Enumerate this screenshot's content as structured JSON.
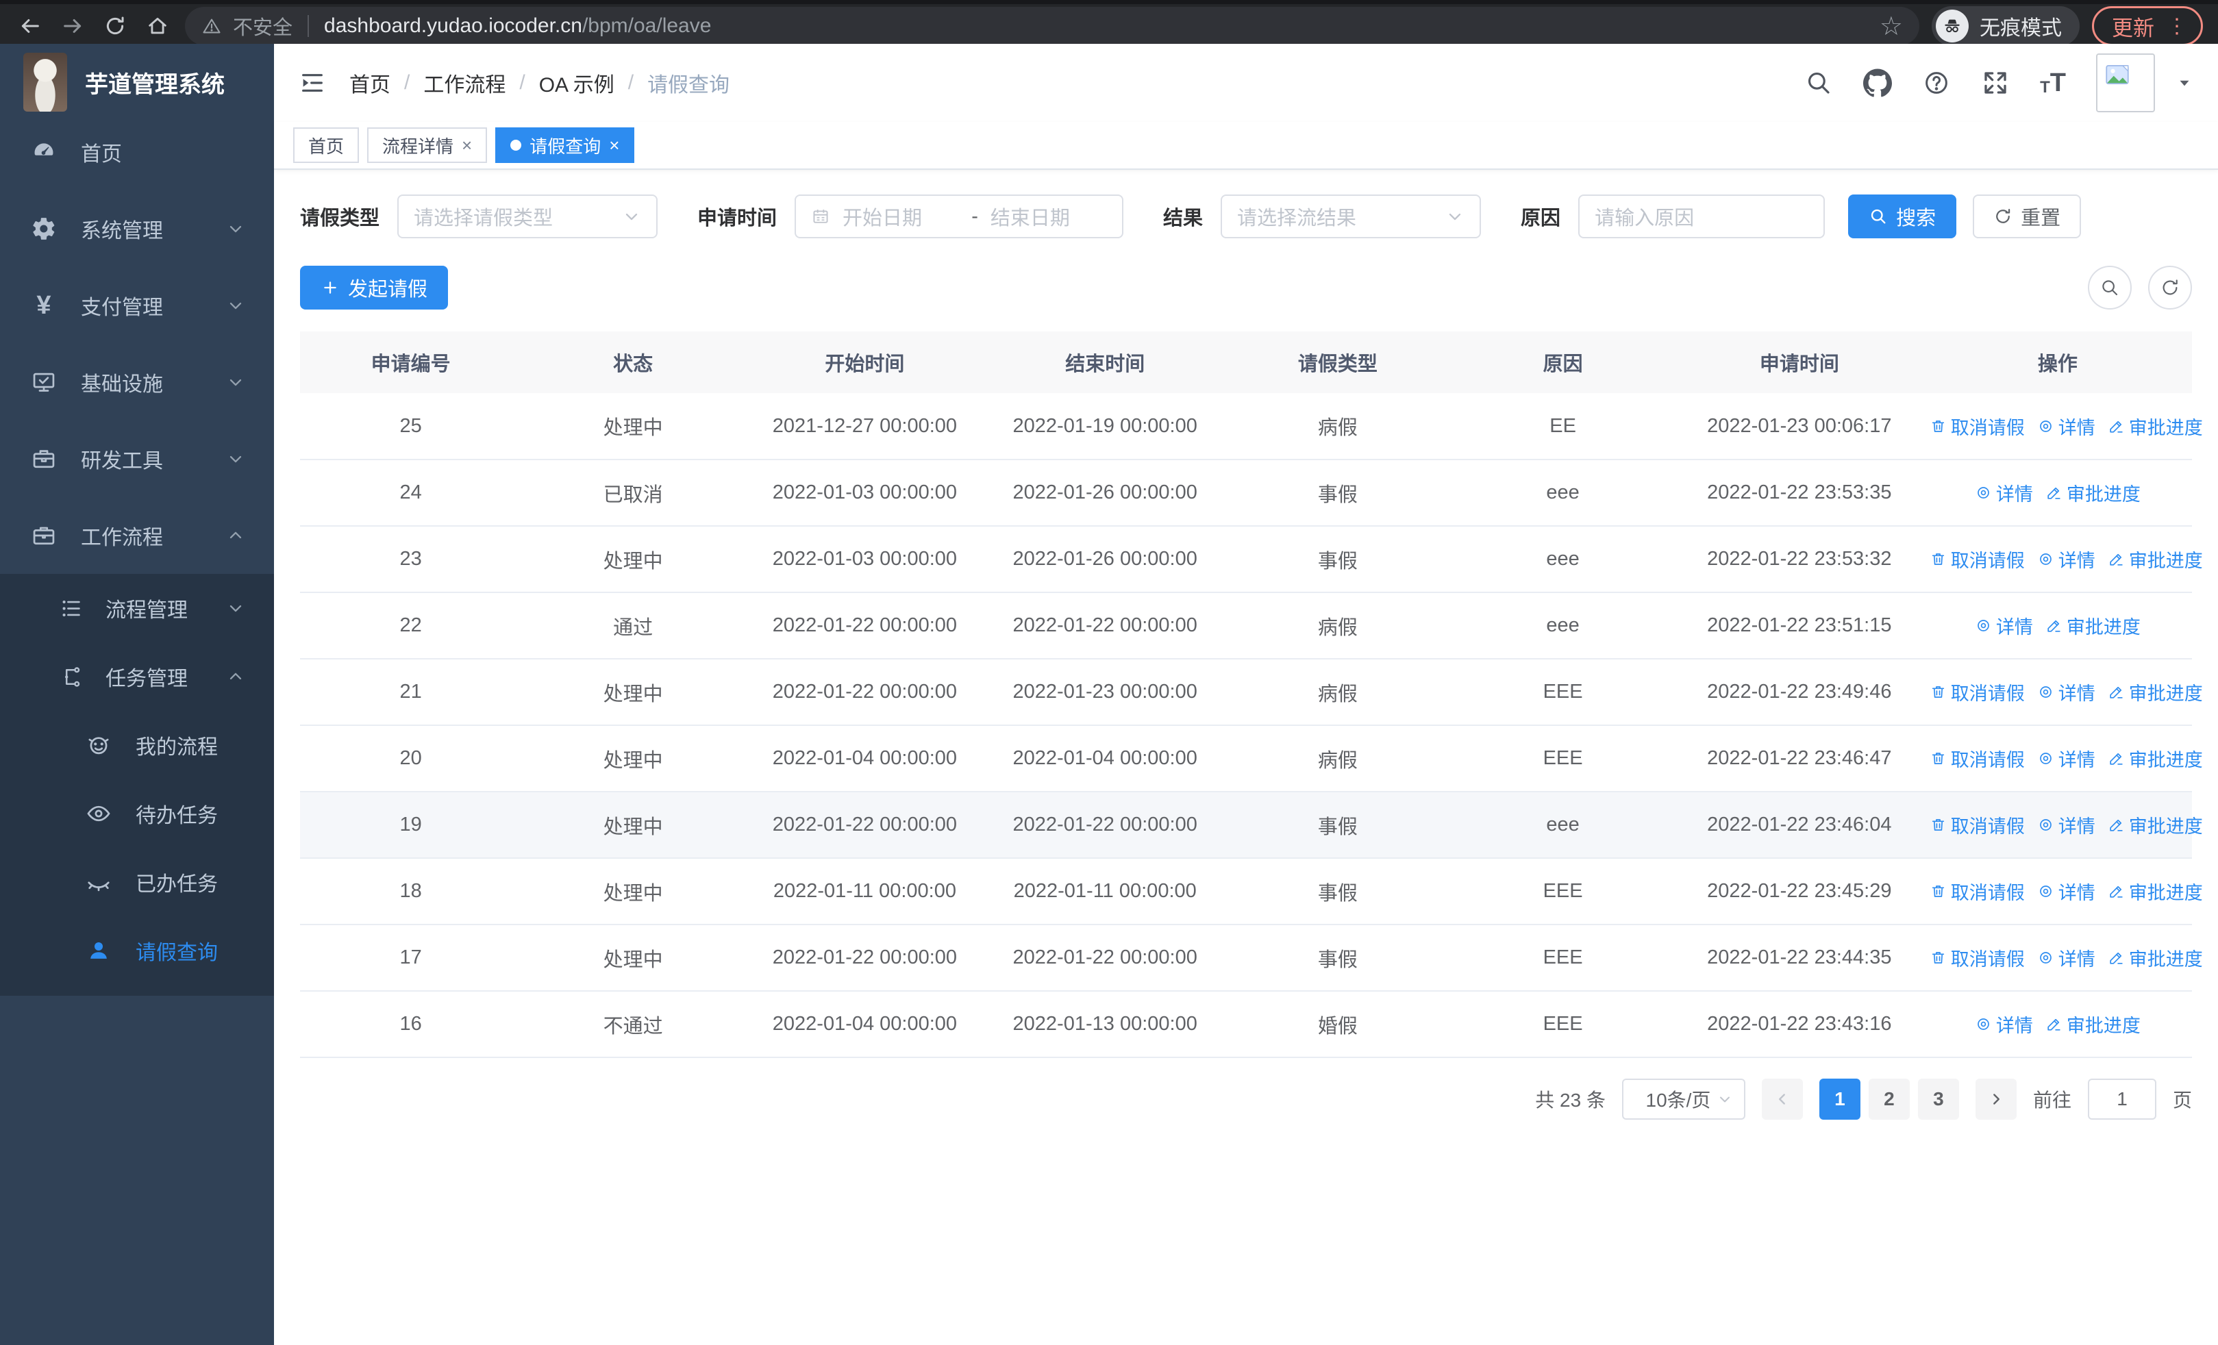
{
  "browser": {
    "security_label": "不安全",
    "url_host": "dashboard.yudao.iocoder.cn",
    "url_path": "/bpm/oa/leave",
    "incognito_label": "无痕模式",
    "update_label": "更新"
  },
  "sidebar": {
    "title": "芋道管理系统",
    "items": [
      {
        "key": "home",
        "label": "首页",
        "icon": "dashboard-icon",
        "level": 1
      },
      {
        "key": "system",
        "label": "系统管理",
        "icon": "gear-icon",
        "level": 1,
        "chevron": "down"
      },
      {
        "key": "payment",
        "label": "支付管理",
        "icon": "yen-icon",
        "level": 1,
        "chevron": "down"
      },
      {
        "key": "infra",
        "label": "基础设施",
        "icon": "monitor-icon",
        "level": 1,
        "chevron": "down"
      },
      {
        "key": "devtools",
        "label": "研发工具",
        "icon": "toolbox-icon",
        "level": 1,
        "chevron": "down"
      },
      {
        "key": "workflow",
        "label": "工作流程",
        "icon": "briefcase-icon",
        "level": 1,
        "chevron": "up"
      },
      {
        "key": "process-mgmt",
        "label": "流程管理",
        "icon": "list-icon",
        "level": 2,
        "chevron": "down"
      },
      {
        "key": "task-mgmt",
        "label": "任务管理",
        "icon": "flow-icon",
        "level": 2,
        "chevron": "up"
      },
      {
        "key": "my-process",
        "label": "我的流程",
        "icon": "face-icon",
        "level": 3
      },
      {
        "key": "todo-tasks",
        "label": "待办任务",
        "icon": "eye-open-icon",
        "level": 3
      },
      {
        "key": "done-tasks",
        "label": "已办任务",
        "icon": "eye-closed-icon",
        "level": 3
      },
      {
        "key": "leave-query",
        "label": "请假查询",
        "icon": "user-icon",
        "level": 3,
        "active": true
      }
    ]
  },
  "header": {
    "breadcrumb": [
      "首页",
      "工作流程",
      "OA 示例",
      "请假查询"
    ]
  },
  "tabs": [
    {
      "label": "首页",
      "closable": false,
      "active": false
    },
    {
      "label": "流程详情",
      "closable": true,
      "active": false
    },
    {
      "label": "请假查询",
      "closable": true,
      "active": true
    }
  ],
  "filters": {
    "leave_type_label": "请假类型",
    "leave_type_placeholder": "请选择请假类型",
    "apply_time_label": "申请时间",
    "date_start_placeholder": "开始日期",
    "date_separator": "-",
    "date_end_placeholder": "结束日期",
    "result_label": "结果",
    "result_placeholder": "请选择流结果",
    "reason_label": "原因",
    "reason_placeholder": "请输入原因",
    "search_label": "搜索",
    "reset_label": "重置"
  },
  "toolbar": {
    "create_label": "发起请假"
  },
  "table": {
    "columns": [
      "申请编号",
      "状态",
      "开始时间",
      "结束时间",
      "请假类型",
      "原因",
      "申请时间",
      "操作"
    ],
    "action_labels": {
      "cancel": "取消请假",
      "detail": "详情",
      "progress": "审批进度"
    },
    "rows": [
      {
        "id": "25",
        "status": "处理中",
        "start": "2021-12-27 00:00:00",
        "end": "2022-01-19 00:00:00",
        "type": "病假",
        "reason": "EE",
        "applied": "2022-01-23 00:06:17",
        "actions": [
          "cancel",
          "detail",
          "progress"
        ],
        "highlight": false
      },
      {
        "id": "24",
        "status": "已取消",
        "start": "2022-01-03 00:00:00",
        "end": "2022-01-26 00:00:00",
        "type": "事假",
        "reason": "eee",
        "applied": "2022-01-22 23:53:35",
        "actions": [
          "detail",
          "progress"
        ],
        "highlight": false
      },
      {
        "id": "23",
        "status": "处理中",
        "start": "2022-01-03 00:00:00",
        "end": "2022-01-26 00:00:00",
        "type": "事假",
        "reason": "eee",
        "applied": "2022-01-22 23:53:32",
        "actions": [
          "cancel",
          "detail",
          "progress"
        ],
        "highlight": false
      },
      {
        "id": "22",
        "status": "通过",
        "start": "2022-01-22 00:00:00",
        "end": "2022-01-22 00:00:00",
        "type": "病假",
        "reason": "eee",
        "applied": "2022-01-22 23:51:15",
        "actions": [
          "detail",
          "progress"
        ],
        "highlight": false
      },
      {
        "id": "21",
        "status": "处理中",
        "start": "2022-01-22 00:00:00",
        "end": "2022-01-23 00:00:00",
        "type": "病假",
        "reason": "EEE",
        "applied": "2022-01-22 23:49:46",
        "actions": [
          "cancel",
          "detail",
          "progress"
        ],
        "highlight": false
      },
      {
        "id": "20",
        "status": "处理中",
        "start": "2022-01-04 00:00:00",
        "end": "2022-01-04 00:00:00",
        "type": "病假",
        "reason": "EEE",
        "applied": "2022-01-22 23:46:47",
        "actions": [
          "cancel",
          "detail",
          "progress"
        ],
        "highlight": false
      },
      {
        "id": "19",
        "status": "处理中",
        "start": "2022-01-22 00:00:00",
        "end": "2022-01-22 00:00:00",
        "type": "事假",
        "reason": "eee",
        "applied": "2022-01-22 23:46:04",
        "actions": [
          "cancel",
          "detail",
          "progress"
        ],
        "highlight": true
      },
      {
        "id": "18",
        "status": "处理中",
        "start": "2022-01-11 00:00:00",
        "end": "2022-01-11 00:00:00",
        "type": "事假",
        "reason": "EEE",
        "applied": "2022-01-22 23:45:29",
        "actions": [
          "cancel",
          "detail",
          "progress"
        ],
        "highlight": false
      },
      {
        "id": "17",
        "status": "处理中",
        "start": "2022-01-22 00:00:00",
        "end": "2022-01-22 00:00:00",
        "type": "事假",
        "reason": "EEE",
        "applied": "2022-01-22 23:44:35",
        "actions": [
          "cancel",
          "detail",
          "progress"
        ],
        "highlight": false
      },
      {
        "id": "16",
        "status": "不通过",
        "start": "2022-01-04 00:00:00",
        "end": "2022-01-13 00:00:00",
        "type": "婚假",
        "reason": "EEE",
        "applied": "2022-01-22 23:43:16",
        "actions": [
          "detail",
          "progress"
        ],
        "highlight": false
      }
    ]
  },
  "pagination": {
    "total_label": "共 23 条",
    "page_size": "10条/页",
    "pages": [
      "1",
      "2",
      "3"
    ],
    "active_page": "1",
    "goto_label": "前往",
    "goto_value": "1",
    "page_unit": "页"
  },
  "colors": {
    "accent": "#2d8cf0",
    "sidebar_bg": "#304156",
    "submenu_bg": "#263445",
    "table_header_bg": "#f8f8f9",
    "highlight_row_bg": "#f5f7fa",
    "update_accent": "#f28b82",
    "chrome_bg": "#242629"
  }
}
